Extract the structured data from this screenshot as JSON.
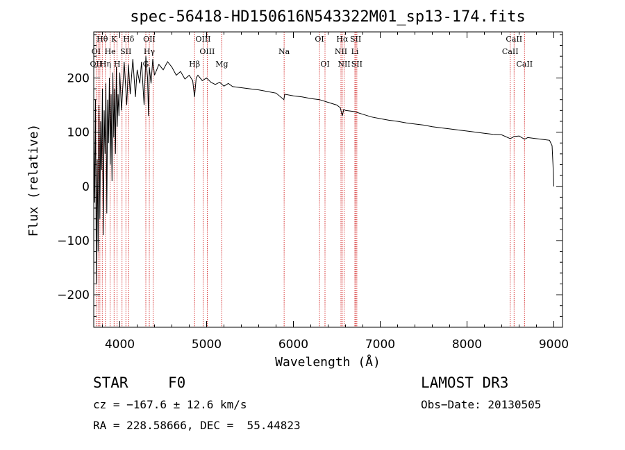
{
  "chart_data": {
    "type": "line",
    "title": "spec-56418-HD150616N543322M01_sp13-174.fits",
    "xlabel": "Wavelength (Å)",
    "ylabel": "Flux (relative)",
    "xlim": [
      3700,
      9100
    ],
    "ylim": [
      -260,
      285
    ],
    "xticks": [
      4000,
      5000,
      6000,
      7000,
      8000,
      9000
    ],
    "yticks": [
      -200,
      -100,
      0,
      100,
      200
    ],
    "series": [
      {
        "name": "flux",
        "x": [
          3700,
          3710,
          3720,
          3730,
          3740,
          3750,
          3760,
          3770,
          3780,
          3790,
          3800,
          3810,
          3820,
          3830,
          3840,
          3850,
          3860,
          3870,
          3880,
          3890,
          3900,
          3910,
          3920,
          3930,
          3940,
          3950,
          3960,
          3970,
          3980,
          3990,
          4000,
          4020,
          4050,
          4080,
          4100,
          4120,
          4150,
          4180,
          4200,
          4230,
          4250,
          4280,
          4300,
          4320,
          4330,
          4340,
          4360,
          4380,
          4400,
          4450,
          4500,
          4550,
          4600,
          4650,
          4700,
          4750,
          4800,
          4840,
          4861,
          4880,
          4900,
          4950,
          5000,
          5050,
          5100,
          5150,
          5200,
          5250,
          5300,
          5400,
          5500,
          5600,
          5700,
          5800,
          5890,
          5900,
          6000,
          6100,
          6200,
          6300,
          6400,
          6500,
          6540,
          6563,
          6580,
          6600,
          6700,
          6800,
          6900,
          7000,
          7100,
          7200,
          7300,
          7400,
          7500,
          7600,
          7700,
          7800,
          7900,
          8000,
          8100,
          8200,
          8300,
          8400,
          8498,
          8542,
          8600,
          8662,
          8700,
          8800,
          8900,
          8950,
          8980,
          8990,
          9000
        ],
        "y": [
          100,
          -30,
          160,
          -180,
          50,
          -120,
          150,
          -60,
          120,
          30,
          180,
          -90,
          140,
          60,
          190,
          -50,
          160,
          80,
          200,
          40,
          170,
          10,
          210,
          90,
          180,
          60,
          220,
          110,
          170,
          130,
          210,
          140,
          230,
          150,
          225,
          170,
          235,
          165,
          215,
          190,
          230,
          150,
          240,
          200,
          130,
          220,
          190,
          235,
          205,
          225,
          215,
          230,
          220,
          205,
          212,
          198,
          205,
          195,
          165,
          200,
          205,
          195,
          200,
          192,
          188,
          192,
          185,
          190,
          184,
          182,
          180,
          178,
          175,
          172,
          160,
          170,
          167,
          165,
          162,
          160,
          155,
          150,
          145,
          130,
          142,
          140,
          138,
          133,
          128,
          125,
          122,
          120,
          117,
          115,
          113,
          110,
          108,
          106,
          104,
          102,
          100,
          98,
          96,
          95,
          88,
          92,
          93,
          87,
          90,
          88,
          86,
          85,
          75,
          40,
          0
        ]
      }
    ],
    "lines": [
      {
        "name": "Hθ",
        "wl": 3798,
        "row": 0
      },
      {
        "name": "K",
        "wl": 3934,
        "row": 0
      },
      {
        "name": "Hδ",
        "wl": 4102,
        "row": 0
      },
      {
        "name": "OII",
        "wl": 4340,
        "row": 0
      },
      {
        "name": "OIII",
        "wl": 4960,
        "row": 0
      },
      {
        "name": "OI",
        "wl": 6300,
        "row": 0
      },
      {
        "name": "Hα",
        "wl": 6563,
        "row": 0
      },
      {
        "name": "SII",
        "wl": 6717,
        "row": 0
      },
      {
        "name": "CaII",
        "wl": 8542,
        "row": 0
      },
      {
        "name": "OI",
        "wl": 3727,
        "row": 1
      },
      {
        "name": "He",
        "wl": 3889,
        "row": 1
      },
      {
        "name": "SII",
        "wl": 4070,
        "row": 1
      },
      {
        "name": "Hγ",
        "wl": 4340,
        "row": 1
      },
      {
        "name": "OIII",
        "wl": 5007,
        "row": 1
      },
      {
        "name": "Na",
        "wl": 5893,
        "row": 1
      },
      {
        "name": "NII",
        "wl": 6548,
        "row": 1
      },
      {
        "name": "Li",
        "wl": 6708,
        "row": 1
      },
      {
        "name": "CaII",
        "wl": 8498,
        "row": 1
      },
      {
        "name": "OII",
        "wl": 3727,
        "row": 2
      },
      {
        "name": "Hη",
        "wl": 3835,
        "row": 2
      },
      {
        "name": "H",
        "wl": 3969,
        "row": 2
      },
      {
        "name": "G",
        "wl": 4300,
        "row": 2
      },
      {
        "name": "Hβ",
        "wl": 4861,
        "row": 2
      },
      {
        "name": "Mg",
        "wl": 5175,
        "row": 2
      },
      {
        "name": "OI",
        "wl": 6364,
        "row": 2
      },
      {
        "name": "NII",
        "wl": 6584,
        "row": 2
      },
      {
        "name": "SII",
        "wl": 6731,
        "row": 2
      },
      {
        "name": "CaII",
        "wl": 8662,
        "row": 2
      }
    ],
    "extra_marker_wl": [
      3750,
      3771,
      4026,
      4383
    ]
  },
  "info": {
    "object_type": "STAR",
    "subclass": "F0",
    "survey": "LAMOST DR3",
    "cz": "cz = −167.6 ± 12.6 km/s",
    "obs_date": "Obs−Date: 20130505",
    "coords": "RA = 228.58666, DEC =  55.44823"
  },
  "colors": {
    "spectrum": "#000000",
    "marker": "#cc0000",
    "axis": "#000000"
  }
}
